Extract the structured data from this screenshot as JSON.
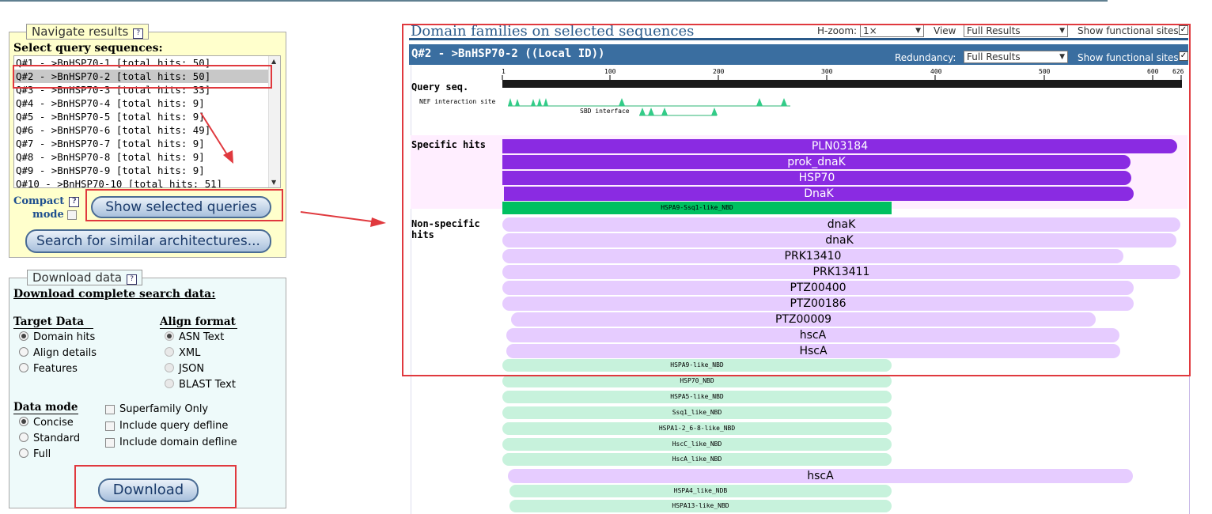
{
  "navigate": {
    "legend": "Navigate results",
    "help": "?",
    "select_title": "Select query sequences:",
    "queries": [
      "Q#1 - >BnHSP70-1 [total hits: 50]",
      "Q#2 - >BnHSP70-2 [total hits: 50]",
      "Q#3 - >BnHSP70-3 [total hits: 33]",
      "Q#4 - >BnHSP70-4 [total hits: 9]",
      "Q#5 - >BnHSP70-5 [total hits: 9]",
      "Q#6 - >BnHSP70-6 [total hits: 49]",
      "Q#7 - >BnHSP70-7 [total hits: 9]",
      "Q#8 - >BnHSP70-8 [total hits: 9]",
      "Q#9 - >BnHSP70-9 [total hits: 9]",
      "Q#10 - >BnHSP70-10 [total hits: 51]"
    ],
    "selected_index": 1,
    "compact_label": "Compact",
    "mode_label": "mode",
    "show_selected_button": "Show selected queries",
    "search_similar_button": "Search for similar architectures..."
  },
  "download": {
    "legend": "Download data",
    "help": "?",
    "title": "Download complete search data:",
    "target_data_head": "Target Data",
    "target_options": [
      "Domain hits",
      "Align details",
      "Features"
    ],
    "target_selected": 0,
    "align_format_head": "Align format",
    "align_options": [
      "ASN Text",
      "XML",
      "JSON",
      "BLAST Text"
    ],
    "align_selected": 0,
    "data_mode_head": "Data mode",
    "mode_options": [
      "Concise",
      "Standard",
      "Full"
    ],
    "mode_selected": 0,
    "checkboxes": [
      "Superfamily Only",
      "Include query defline",
      "Include domain defline"
    ],
    "download_button": "Download"
  },
  "results": {
    "title": "Domain families on selected sequences",
    "hzoom_label": "H-zoom:",
    "hzoom_value": "1×",
    "view_label": "View",
    "view_value": "Full Results",
    "show_sites_label": "Show functional sites",
    "query_header": "Q#2 - >BnHSP70-2 ((Local ID))",
    "redundancy_label": "Redundancy:",
    "redundancy_value": "Full Results",
    "show_sites_label2": "Show functional sites",
    "query_seq_label": "Query seq.",
    "ruler_ticks": [
      "1",
      "100",
      "200",
      "300",
      "400",
      "500",
      "600",
      "626"
    ],
    "sites": [
      "NEF interaction site",
      "SBD interface"
    ],
    "specific_label": "Specific hits",
    "nonspecific_label_1": "Non-specific",
    "nonspecific_label_2": "hits",
    "specific_hits": [
      "PLN03184",
      "prok_dnaK",
      "HSP70",
      "DnaK"
    ],
    "green_hit": "HSPA9-Ssq1-like_NBD",
    "nonspecific_hits": [
      "dnaK",
      "dnaK",
      "PRK13410",
      "PRK13411",
      "PTZ00400",
      "PTZ00186",
      "PTZ00009",
      "hscA",
      "HscA"
    ],
    "superfamily_hits_a": [
      "HSPA9-like_NBD",
      "HSP70_NBD",
      "HSPA5-like_NBD",
      "Ssq1_like_NBD",
      "HSPA1-2_6-8-like_NBD",
      "HscC_like_NBD",
      "HscA_like_NBD"
    ],
    "late_hit": "hscA",
    "superfamily_hits_b": [
      "HSPA4_like_NDB",
      "HSPA13-like_NBD"
    ]
  }
}
